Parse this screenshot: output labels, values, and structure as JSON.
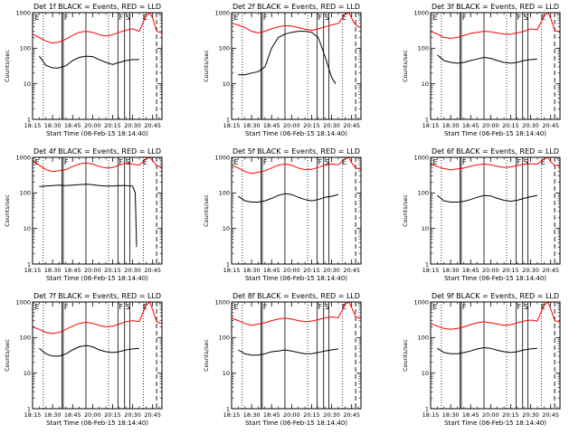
{
  "chart_data": {
    "type": "line",
    "shared": {
      "xlabel": "Start Time (06-Feb-15 18:14:40)",
      "ylabel": "Counts/sec",
      "x_tick_labels": [
        "18:15",
        "18:30",
        "18:45",
        "20:00",
        "20:15",
        "20:30",
        "20:45"
      ],
      "x_tick_minutes": [
        0,
        15,
        30,
        45,
        60,
        75,
        90
      ],
      "x_range_minutes": [
        0,
        97
      ],
      "ylim": [
        1,
        1000
      ],
      "yscale": "log",
      "y_tick_labels": [
        "1",
        "10",
        "100",
        "1000"
      ],
      "y_ticks": [
        1,
        10,
        100,
        1000
      ],
      "colors": {
        "events": "#000000",
        "lld": "#ff0000"
      },
      "dotted_lines_minutes": [
        8,
        57,
        83
      ],
      "solid_lines_minutes": [
        22,
        23,
        40,
        64,
        69,
        73
      ],
      "dashed_lines_minutes": [
        93
      ],
      "markers": [
        {
          "text": "E",
          "minute": 1
        },
        {
          "text": "F",
          "minute": 23
        },
        {
          "text": "F",
          "minute": 64
        },
        {
          "text": "S",
          "minute": 69
        },
        {
          "text": "E",
          "minute": 82
        }
      ],
      "x_minutes": [
        0,
        5,
        10,
        15,
        20,
        25,
        30,
        35,
        40,
        45,
        50,
        55,
        60,
        65,
        70,
        75,
        80,
        85,
        90,
        95
      ]
    },
    "panels": [
      {
        "title": "Det 1f BLACK = Events, RED = LLD",
        "series": [
          {
            "name": "BLACK = Events",
            "x": [
              5,
              10,
              15,
              20,
              22,
              25,
              30,
              35,
              40,
              45,
              50,
              55,
              60,
              65,
              70,
              75,
              80
            ],
            "y": [
              60,
              33,
              28,
              28,
              30,
              32,
              45,
              55,
              60,
              58,
              48,
              40,
              35,
              40,
              45,
              48,
              48
            ]
          },
          {
            "name": "RED = LLD",
            "x": [
              0,
              5,
              10,
              15,
              20,
              25,
              30,
              35,
              40,
              45,
              50,
              55,
              60,
              65,
              70,
              75,
              80,
              85,
              88,
              90,
              93,
              95,
              97
            ],
            "y": [
              250,
              200,
              160,
              140,
              150,
              180,
              230,
              280,
              300,
              280,
              240,
              220,
              240,
              280,
              320,
              350,
              300,
              800,
              1000,
              700,
              300,
              280,
              260
            ]
          }
        ]
      },
      {
        "title": "Det 2f BLACK = Events, RED = LLD",
        "series": [
          {
            "name": "BLACK = Events",
            "x": [
              5,
              10,
              15,
              20,
              25,
              30,
              35,
              40,
              45,
              50,
              55,
              60,
              65,
              70,
              75,
              78
            ],
            "y": [
              18,
              18,
              20,
              22,
              30,
              100,
              200,
              250,
              280,
              300,
              300,
              280,
              200,
              60,
              15,
              10
            ]
          },
          {
            "name": "RED = LLD",
            "x": [
              0,
              5,
              10,
              15,
              20,
              25,
              30,
              35,
              40,
              45,
              50,
              55,
              60,
              65,
              70,
              75,
              80,
              85,
              88,
              92,
              95,
              97
            ],
            "y": [
              500,
              450,
              380,
              300,
              270,
              300,
              350,
              400,
              430,
              420,
              380,
              340,
              320,
              350,
              400,
              450,
              500,
              900,
              1000,
              500,
              400,
              380
            ]
          }
        ]
      },
      {
        "title": "Det 3f BLACK = Events, RED = LLD",
        "series": [
          {
            "name": "BLACK = Events",
            "x": [
              5,
              10,
              15,
              20,
              25,
              30,
              35,
              40,
              45,
              50,
              55,
              60,
              65,
              70,
              75,
              80
            ],
            "y": [
              65,
              45,
              40,
              38,
              40,
              45,
              50,
              55,
              52,
              45,
              40,
              38,
              40,
              45,
              48,
              50
            ]
          },
          {
            "name": "RED = LLD",
            "x": [
              0,
              5,
              10,
              15,
              20,
              25,
              30,
              35,
              40,
              45,
              50,
              55,
              60,
              65,
              70,
              75,
              80,
              85,
              88,
              90,
              93,
              95,
              97
            ],
            "y": [
              300,
              250,
              200,
              190,
              200,
              230,
              260,
              280,
              300,
              290,
              270,
              250,
              250,
              270,
              300,
              350,
              330,
              800,
              1000,
              700,
              320,
              300,
              280
            ]
          }
        ]
      },
      {
        "title": "Det 4f BLACK = Events, RED = LLD",
        "series": [
          {
            "name": "BLACK = Events",
            "x": [
              5,
              10,
              15,
              20,
              25,
              30,
              35,
              40,
              45,
              50,
              55,
              60,
              65,
              70,
              75,
              77,
              78
            ],
            "y": [
              150,
              155,
              160,
              165,
              160,
              165,
              170,
              175,
              170,
              160,
              155,
              155,
              160,
              160,
              155,
              100,
              3
            ]
          },
          {
            "name": "RED = LLD",
            "x": [
              0,
              5,
              10,
              15,
              20,
              25,
              30,
              35,
              40,
              45,
              50,
              55,
              60,
              65,
              70,
              75,
              80,
              85,
              88,
              90,
              93,
              95,
              97
            ],
            "y": [
              800,
              600,
              450,
              400,
              420,
              450,
              550,
              650,
              700,
              650,
              550,
              500,
              520,
              600,
              700,
              650,
              600,
              900,
              1000,
              800,
              600,
              550,
              500
            ]
          }
        ]
      },
      {
        "title": "Det 5f BLACK = Events, RED = LLD",
        "series": [
          {
            "name": "BLACK = Events",
            "x": [
              5,
              10,
              15,
              20,
              25,
              30,
              35,
              40,
              45,
              50,
              55,
              60,
              65,
              70,
              75,
              80
            ],
            "y": [
              80,
              60,
              55,
              55,
              60,
              70,
              85,
              95,
              90,
              75,
              65,
              60,
              65,
              75,
              80,
              90
            ]
          },
          {
            "name": "RED = LLD",
            "x": [
              0,
              5,
              10,
              15,
              20,
              25,
              30,
              35,
              40,
              45,
              50,
              55,
              60,
              65,
              70,
              75,
              80,
              85,
              88,
              90,
              93,
              95,
              97
            ],
            "y": [
              600,
              500,
              400,
              350,
              380,
              420,
              500,
              600,
              650,
              600,
              500,
              450,
              460,
              520,
              600,
              650,
              620,
              900,
              1000,
              700,
              500,
              480,
              450
            ]
          }
        ]
      },
      {
        "title": "Det 6f BLACK = Events, RED = LLD",
        "series": [
          {
            "name": "BLACK = Events",
            "x": [
              5,
              10,
              15,
              20,
              25,
              30,
              35,
              40,
              45,
              50,
              55,
              60,
              65,
              70,
              75,
              80
            ],
            "y": [
              85,
              60,
              55,
              55,
              58,
              65,
              75,
              85,
              82,
              70,
              62,
              58,
              62,
              70,
              78,
              85
            ]
          },
          {
            "name": "RED = LLD",
            "x": [
              0,
              5,
              10,
              15,
              20,
              25,
              30,
              35,
              40,
              45,
              50,
              55,
              60,
              65,
              70,
              75,
              80,
              85,
              88,
              90,
              93,
              95,
              97
            ],
            "y": [
              650,
              550,
              480,
              450,
              470,
              500,
              560,
              620,
              650,
              620,
              560,
              520,
              530,
              580,
              640,
              660,
              640,
              900,
              1000,
              750,
              600,
              580,
              560
            ]
          }
        ]
      },
      {
        "title": "Det 7f BLACK = Events, RED = LLD",
        "series": [
          {
            "name": "BLACK = Events",
            "x": [
              5,
              10,
              15,
              20,
              25,
              30,
              35,
              40,
              45,
              50,
              55,
              60,
              65,
              70,
              75,
              80
            ],
            "y": [
              50,
              35,
              30,
              30,
              35,
              45,
              55,
              60,
              55,
              45,
              40,
              38,
              40,
              45,
              48,
              50
            ]
          },
          {
            "name": "RED = LLD",
            "x": [
              0,
              5,
              10,
              15,
              20,
              25,
              30,
              35,
              40,
              45,
              50,
              55,
              60,
              65,
              70,
              75,
              80,
              85,
              88,
              90,
              93,
              95,
              97
            ],
            "y": [
              200,
              170,
              140,
              130,
              140,
              170,
              210,
              250,
              270,
              250,
              220,
              200,
              210,
              240,
              280,
              300,
              280,
              800,
              1000,
              600,
              280,
              260,
              250
            ]
          }
        ]
      },
      {
        "title": "Det 8f BLACK = Events, RED = LLD",
        "series": [
          {
            "name": "BLACK = Events",
            "x": [
              5,
              10,
              15,
              20,
              25,
              30,
              35,
              40,
              45,
              50,
              55,
              60,
              65,
              70,
              75,
              80
            ],
            "y": [
              45,
              35,
              32,
              32,
              35,
              40,
              42,
              45,
              42,
              38,
              35,
              35,
              38,
              42,
              45,
              48
            ]
          },
          {
            "name": "RED = LLD",
            "x": [
              0,
              5,
              10,
              15,
              20,
              25,
              30,
              35,
              40,
              45,
              50,
              55,
              60,
              65,
              70,
              75,
              80,
              85,
              88,
              90,
              93,
              95,
              97
            ],
            "y": [
              350,
              300,
              250,
              220,
              240,
              260,
              300,
              330,
              350,
              330,
              300,
              280,
              290,
              320,
              360,
              380,
              360,
              850,
              1000,
              700,
              380,
              360,
              340
            ]
          }
        ]
      },
      {
        "title": "Det 9f BLACK = Events, RED = LLD",
        "series": [
          {
            "name": "BLACK = Events",
            "x": [
              5,
              10,
              15,
              20,
              25,
              30,
              35,
              40,
              45,
              50,
              55,
              60,
              65,
              70,
              75,
              80
            ],
            "y": [
              50,
              38,
              35,
              35,
              38,
              42,
              48,
              52,
              50,
              44,
              40,
              38,
              40,
              45,
              48,
              50
            ]
          },
          {
            "name": "RED = LLD",
            "x": [
              0,
              5,
              10,
              15,
              20,
              25,
              30,
              35,
              40,
              45,
              50,
              55,
              60,
              65,
              70,
              75,
              80,
              85,
              88,
              90,
              93,
              95,
              97
            ],
            "y": [
              250,
              210,
              180,
              170,
              180,
              200,
              230,
              260,
              280,
              260,
              240,
              220,
              230,
              260,
              290,
              310,
              290,
              800,
              1000,
              650,
              300,
              280,
              270
            ]
          }
        ]
      }
    ]
  }
}
